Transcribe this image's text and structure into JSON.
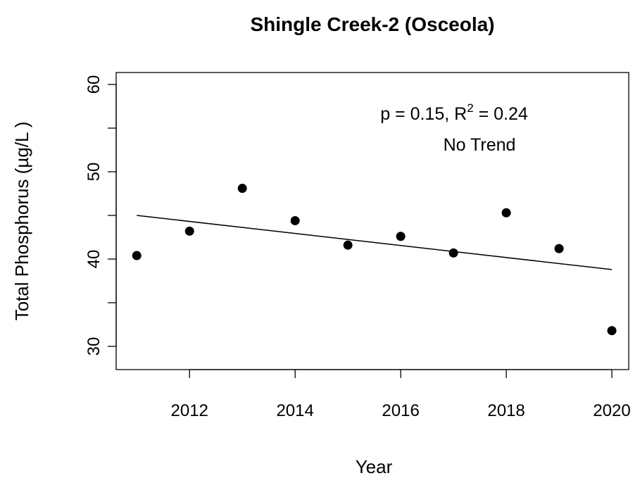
{
  "chart_data": {
    "type": "scatter",
    "title": "Shingle Creek-2 (Osceola)",
    "xlabel": "Year",
    "ylabel": "Total Phosphorus (µg/L )",
    "x": [
      2011,
      2012,
      2013,
      2014,
      2015,
      2016,
      2017,
      2018,
      2019,
      2020
    ],
    "values": [
      40.4,
      43.2,
      48.1,
      44.4,
      41.6,
      42.6,
      40.7,
      45.3,
      41.2,
      31.8
    ],
    "color": "#000000",
    "trend": {
      "x": [
        2011,
        2020
      ],
      "values": [
        45.0,
        38.8
      ],
      "color": "#000000"
    },
    "annotation": {
      "line1_prefix": "p = 0.15, R",
      "line1_superscript": "2",
      "line1_suffix": " = 0.24",
      "line2": "No Trend"
    },
    "xlim": [
      2010.61,
      2020.32
    ],
    "xticks": [
      2012,
      2014,
      2016,
      2018,
      2020
    ],
    "ylim": [
      27.34,
      61.37
    ],
    "yticks": [
      30,
      40,
      50,
      60
    ],
    "yticks_unlabeled": [
      35,
      45,
      55
    ],
    "grid": false
  }
}
